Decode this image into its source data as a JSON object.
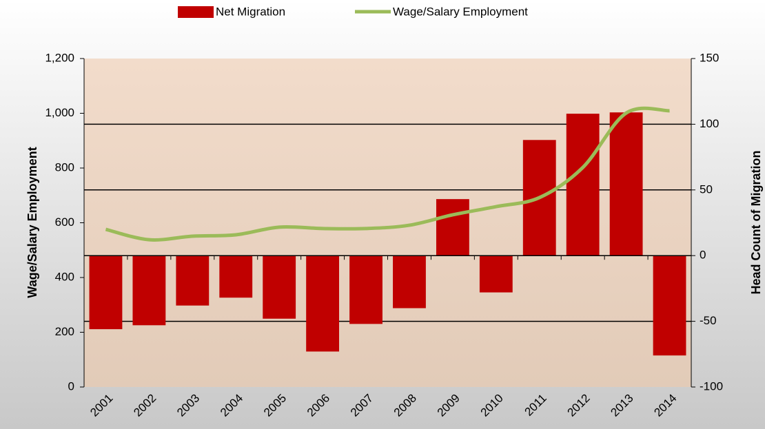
{
  "chart_data": {
    "type": "combo",
    "categories": [
      "2001",
      "2002",
      "2003",
      "2004",
      "2005",
      "2006",
      "2007",
      "2008",
      "2009",
      "2010",
      "2011",
      "2012",
      "2013",
      "2014"
    ],
    "series": [
      {
        "name": "Net Migration",
        "type": "bar",
        "axis": "y2",
        "color": "#c00000",
        "values": [
          -56,
          -53,
          -38,
          -32,
          -48,
          -73,
          -52,
          -40,
          43,
          -28,
          88,
          108,
          109,
          -76
        ]
      },
      {
        "name": "Wage/Salary Employment",
        "type": "line",
        "axis": "y",
        "color": "#9bbb59",
        "values": [
          576,
          538,
          551,
          556,
          584,
          579,
          579,
          591,
          629,
          659,
          692,
          802,
          1001,
          1009
        ]
      }
    ],
    "y_label": "Wage/Salary Employment",
    "y2_label": "Head Count of Migration",
    "ylim": [
      0,
      1200
    ],
    "yticks": [
      0,
      200,
      400,
      600,
      800,
      {
        "value": 1000,
        "label": "1,000"
      },
      {
        "value": 1200,
        "label": "1,200"
      }
    ],
    "y2lim": [
      -100,
      150
    ],
    "y2ticks": [
      -100,
      -50,
      0,
      50,
      100,
      150
    ],
    "grid": true
  }
}
